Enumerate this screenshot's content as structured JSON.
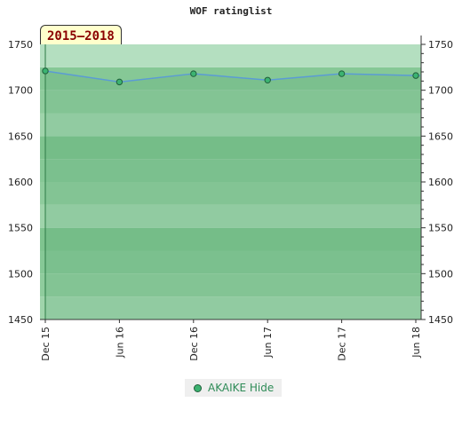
{
  "chart_data": {
    "type": "line",
    "title": "WOF ratinglist",
    "period_label": "2015–2018",
    "x": [
      "Dec 15",
      "Jun 16",
      "Dec 16",
      "Jun 17",
      "Dec 17",
      "Jun 18"
    ],
    "series": [
      {
        "name": "AKAIKE Hide",
        "values": [
          1721,
          1709,
          1718,
          1711,
          1718,
          1716
        ]
      }
    ],
    "yticks": [
      1450,
      1500,
      1550,
      1600,
      1650,
      1700,
      1750
    ],
    "ylim": [
      1450,
      1750
    ],
    "y_axis_right": true,
    "legend_position": "bottom-center",
    "colors": {
      "line": "#5b9bd5",
      "marker": "#3cb371",
      "band_light": "#9fd4ab",
      "band_dark": "#7fc48f",
      "top_band": "#b4dfc0"
    }
  }
}
